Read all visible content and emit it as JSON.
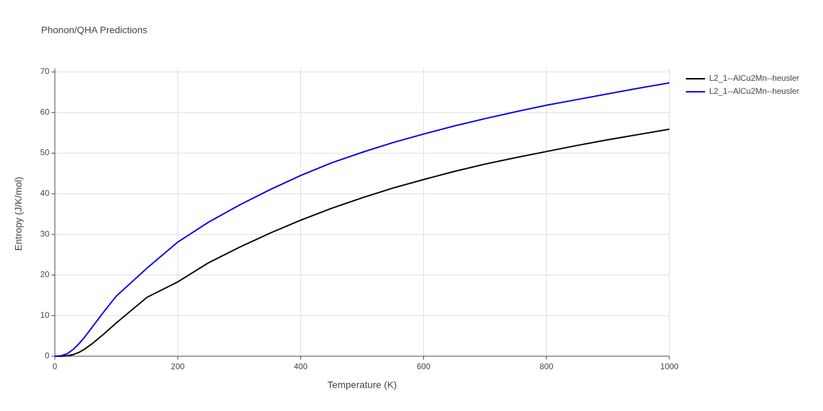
{
  "chart_data": {
    "type": "line",
    "title": "Phonon/QHA Predictions",
    "x_label": "Temperature (K)",
    "y_label": "Entropy (J/K/mol)",
    "x": [
      0,
      10,
      20,
      30,
      40,
      50,
      60,
      80,
      100,
      150,
      200,
      250,
      300,
      350,
      400,
      450,
      500,
      550,
      600,
      650,
      700,
      750,
      800,
      850,
      900,
      950,
      1000
    ],
    "series": [
      {
        "name": "L2_1--AlCu2Mn--heusler",
        "color": "#000000",
        "values": [
          0,
          0,
          0.1,
          0.4,
          1,
          1.9,
          3,
          5.5,
          8.2,
          14.5,
          18.3,
          23,
          26.8,
          30.3,
          33.5,
          36.4,
          39,
          41.4,
          43.5,
          45.5,
          47.3,
          48.9,
          50.4,
          51.9,
          53.3,
          54.6,
          55.9
        ]
      },
      {
        "name": "L2_1--AlCu2Mn--heusler",
        "color": "#0000ee",
        "values": [
          0,
          0.1,
          0.6,
          1.7,
          3.2,
          5,
          7,
          11,
          14.8,
          21.7,
          28.1,
          33,
          37.2,
          41,
          44.5,
          47.6,
          50.2,
          52.6,
          54.7,
          56.7,
          58.5,
          60.2,
          61.8,
          63.2,
          64.6,
          66,
          67.3
        ]
      }
    ],
    "xlim": [
      0,
      1000
    ],
    "xticks": [
      0,
      200,
      400,
      600,
      800,
      1000
    ],
    "ylim": [
      0,
      70
    ],
    "yticks": [
      0,
      10,
      20,
      30,
      40,
      50,
      60,
      70
    ],
    "grid": true,
    "legend": "right"
  }
}
